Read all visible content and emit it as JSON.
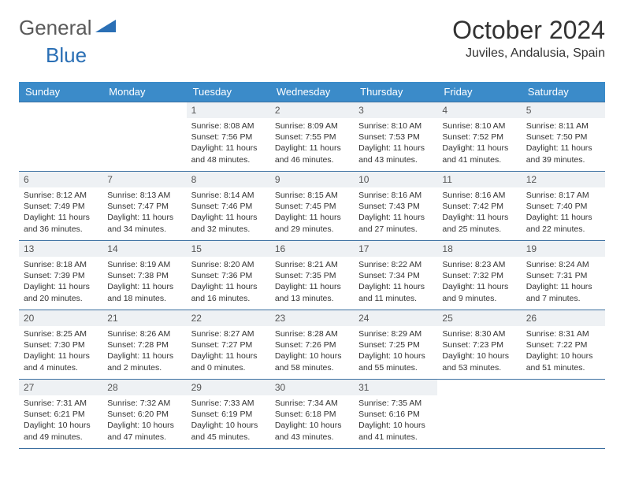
{
  "brand": {
    "part1": "General",
    "part2": "Blue"
  },
  "title": "October 2024",
  "location": "Juviles, Andalusia, Spain",
  "dow": [
    "Sunday",
    "Monday",
    "Tuesday",
    "Wednesday",
    "Thursday",
    "Friday",
    "Saturday"
  ],
  "colors": {
    "header_bg": "#3b8bc9",
    "rule": "#3b6fa0",
    "daynum_bg": "#eef1f4",
    "brand_gray": "#5a5a5a",
    "brand_blue": "#2a6fb5"
  },
  "weeks": [
    [
      {
        "n": "",
        "sr": "",
        "ss": "",
        "dl": ""
      },
      {
        "n": "",
        "sr": "",
        "ss": "",
        "dl": ""
      },
      {
        "n": "1",
        "sr": "8:08 AM",
        "ss": "7:56 PM",
        "dl": "11 hours and 48 minutes."
      },
      {
        "n": "2",
        "sr": "8:09 AM",
        "ss": "7:55 PM",
        "dl": "11 hours and 46 minutes."
      },
      {
        "n": "3",
        "sr": "8:10 AM",
        "ss": "7:53 PM",
        "dl": "11 hours and 43 minutes."
      },
      {
        "n": "4",
        "sr": "8:10 AM",
        "ss": "7:52 PM",
        "dl": "11 hours and 41 minutes."
      },
      {
        "n": "5",
        "sr": "8:11 AM",
        "ss": "7:50 PM",
        "dl": "11 hours and 39 minutes."
      }
    ],
    [
      {
        "n": "6",
        "sr": "8:12 AM",
        "ss": "7:49 PM",
        "dl": "11 hours and 36 minutes."
      },
      {
        "n": "7",
        "sr": "8:13 AM",
        "ss": "7:47 PM",
        "dl": "11 hours and 34 minutes."
      },
      {
        "n": "8",
        "sr": "8:14 AM",
        "ss": "7:46 PM",
        "dl": "11 hours and 32 minutes."
      },
      {
        "n": "9",
        "sr": "8:15 AM",
        "ss": "7:45 PM",
        "dl": "11 hours and 29 minutes."
      },
      {
        "n": "10",
        "sr": "8:16 AM",
        "ss": "7:43 PM",
        "dl": "11 hours and 27 minutes."
      },
      {
        "n": "11",
        "sr": "8:16 AM",
        "ss": "7:42 PM",
        "dl": "11 hours and 25 minutes."
      },
      {
        "n": "12",
        "sr": "8:17 AM",
        "ss": "7:40 PM",
        "dl": "11 hours and 22 minutes."
      }
    ],
    [
      {
        "n": "13",
        "sr": "8:18 AM",
        "ss": "7:39 PM",
        "dl": "11 hours and 20 minutes."
      },
      {
        "n": "14",
        "sr": "8:19 AM",
        "ss": "7:38 PM",
        "dl": "11 hours and 18 minutes."
      },
      {
        "n": "15",
        "sr": "8:20 AM",
        "ss": "7:36 PM",
        "dl": "11 hours and 16 minutes."
      },
      {
        "n": "16",
        "sr": "8:21 AM",
        "ss": "7:35 PM",
        "dl": "11 hours and 13 minutes."
      },
      {
        "n": "17",
        "sr": "8:22 AM",
        "ss": "7:34 PM",
        "dl": "11 hours and 11 minutes."
      },
      {
        "n": "18",
        "sr": "8:23 AM",
        "ss": "7:32 PM",
        "dl": "11 hours and 9 minutes."
      },
      {
        "n": "19",
        "sr": "8:24 AM",
        "ss": "7:31 PM",
        "dl": "11 hours and 7 minutes."
      }
    ],
    [
      {
        "n": "20",
        "sr": "8:25 AM",
        "ss": "7:30 PM",
        "dl": "11 hours and 4 minutes."
      },
      {
        "n": "21",
        "sr": "8:26 AM",
        "ss": "7:28 PM",
        "dl": "11 hours and 2 minutes."
      },
      {
        "n": "22",
        "sr": "8:27 AM",
        "ss": "7:27 PM",
        "dl": "11 hours and 0 minutes."
      },
      {
        "n": "23",
        "sr": "8:28 AM",
        "ss": "7:26 PM",
        "dl": "10 hours and 58 minutes."
      },
      {
        "n": "24",
        "sr": "8:29 AM",
        "ss": "7:25 PM",
        "dl": "10 hours and 55 minutes."
      },
      {
        "n": "25",
        "sr": "8:30 AM",
        "ss": "7:23 PM",
        "dl": "10 hours and 53 minutes."
      },
      {
        "n": "26",
        "sr": "8:31 AM",
        "ss": "7:22 PM",
        "dl": "10 hours and 51 minutes."
      }
    ],
    [
      {
        "n": "27",
        "sr": "7:31 AM",
        "ss": "6:21 PM",
        "dl": "10 hours and 49 minutes."
      },
      {
        "n": "28",
        "sr": "7:32 AM",
        "ss": "6:20 PM",
        "dl": "10 hours and 47 minutes."
      },
      {
        "n": "29",
        "sr": "7:33 AM",
        "ss": "6:19 PM",
        "dl": "10 hours and 45 minutes."
      },
      {
        "n": "30",
        "sr": "7:34 AM",
        "ss": "6:18 PM",
        "dl": "10 hours and 43 minutes."
      },
      {
        "n": "31",
        "sr": "7:35 AM",
        "ss": "6:16 PM",
        "dl": "10 hours and 41 minutes."
      },
      {
        "n": "",
        "sr": "",
        "ss": "",
        "dl": ""
      },
      {
        "n": "",
        "sr": "",
        "ss": "",
        "dl": ""
      }
    ]
  ],
  "labels": {
    "sunrise": "Sunrise: ",
    "sunset": "Sunset: ",
    "daylight": "Daylight: "
  }
}
